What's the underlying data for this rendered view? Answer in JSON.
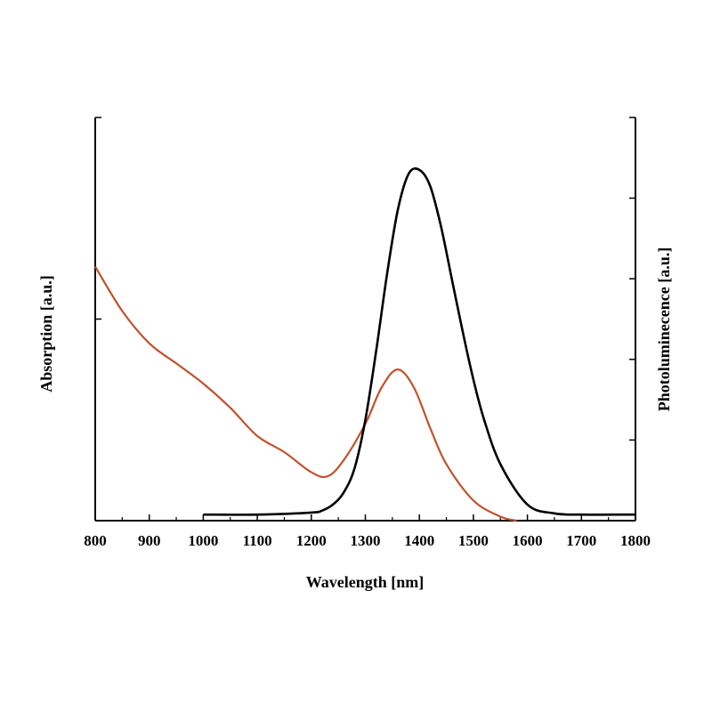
{
  "chart_data": {
    "type": "line",
    "title": "",
    "xlabel": "Wavelength [nm]",
    "ylabel_left": "Absorption [a.u.]",
    "ylabel_right": "Photoluminecence [a.u.]",
    "xlim": [
      800,
      1800
    ],
    "xticks": [
      800,
      900,
      1000,
      1100,
      1200,
      1300,
      1400,
      1500,
      1600,
      1700,
      1800
    ],
    "ylim_left": [
      0,
      1
    ],
    "ylim_right": [
      0,
      1
    ],
    "grid": false,
    "legend": "none",
    "series": [
      {
        "axis": "left",
        "color": "#c0522e",
        "x": [
          800,
          850,
          900,
          950,
          1000,
          1050,
          1100,
          1150,
          1200,
          1230,
          1260,
          1300,
          1330,
          1360,
          1390,
          1420,
          1450,
          1500,
          1550,
          1580
        ],
        "y": [
          0.63,
          0.52,
          0.44,
          0.39,
          0.34,
          0.28,
          0.21,
          0.17,
          0.12,
          0.11,
          0.15,
          0.24,
          0.33,
          0.375,
          0.33,
          0.23,
          0.14,
          0.05,
          0.01,
          0.0
        ]
      },
      {
        "axis": "right",
        "color": "#000000",
        "x": [
          1000,
          1100,
          1200,
          1220,
          1240,
          1260,
          1280,
          1300,
          1320,
          1340,
          1360,
          1380,
          1400,
          1420,
          1440,
          1460,
          1480,
          1500,
          1520,
          1550,
          1600,
          1650,
          1700,
          1800
        ],
        "y": [
          0.015,
          0.015,
          0.02,
          0.025,
          0.04,
          0.07,
          0.13,
          0.25,
          0.42,
          0.61,
          0.77,
          0.86,
          0.87,
          0.83,
          0.73,
          0.6,
          0.47,
          0.35,
          0.25,
          0.14,
          0.04,
          0.018,
          0.015,
          0.015
        ]
      }
    ]
  }
}
